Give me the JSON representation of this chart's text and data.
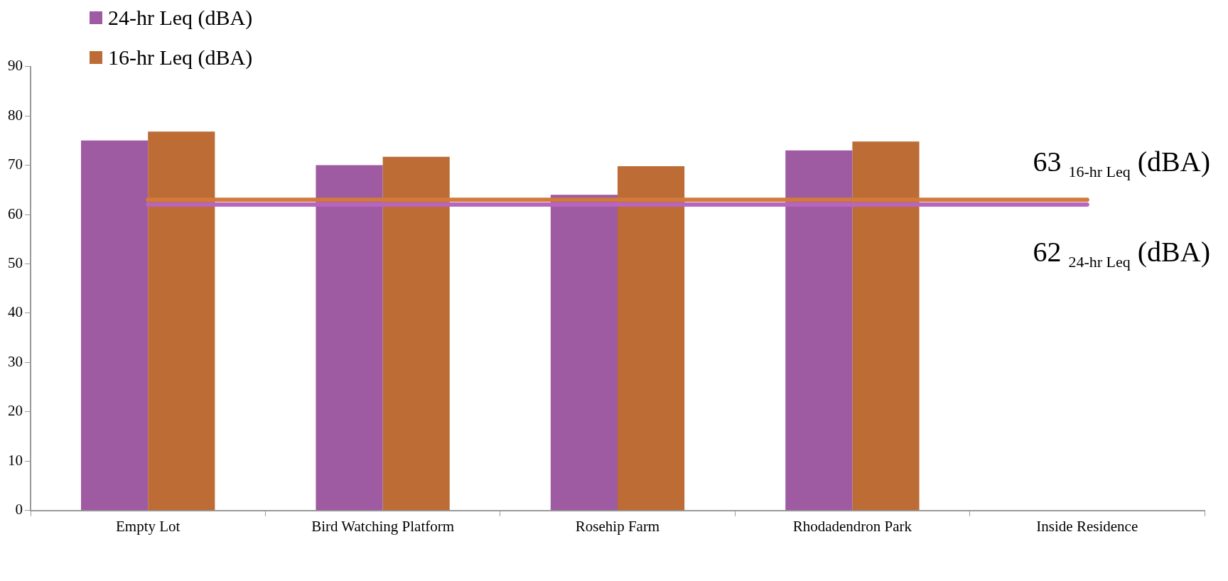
{
  "chart_data": {
    "type": "bar",
    "categories": [
      "Empty Lot",
      "Bird Watching Platform",
      "Rosehip Farm",
      "Rhodadendron Park",
      "Inside Residence"
    ],
    "series": [
      {
        "name": "24-hr Leq (dBA)",
        "color": "#9e5ba1",
        "values": [
          75,
          70,
          64,
          73,
          null
        ]
      },
      {
        "name": "16-hr Leq (dBA)",
        "color": "#bc6c34",
        "values": [
          76.8,
          71.7,
          69.8,
          74.8,
          null
        ]
      }
    ],
    "ylim": [
      0,
      90
    ],
    "yticks": [
      0,
      10,
      20,
      30,
      40,
      50,
      60,
      70,
      80,
      90
    ],
    "grid": false,
    "legend": "top left",
    "ref_lines": [
      {
        "axis": "y",
        "value": 63,
        "label": "63 $_{16-hr Leq}$ (dBA)",
        "color": "#d27a3c"
      },
      {
        "axis": "y",
        "value": 62,
        "label": "62 $_{24-hr Leq}$ (dBA)",
        "color": "#b865c0"
      }
    ]
  }
}
